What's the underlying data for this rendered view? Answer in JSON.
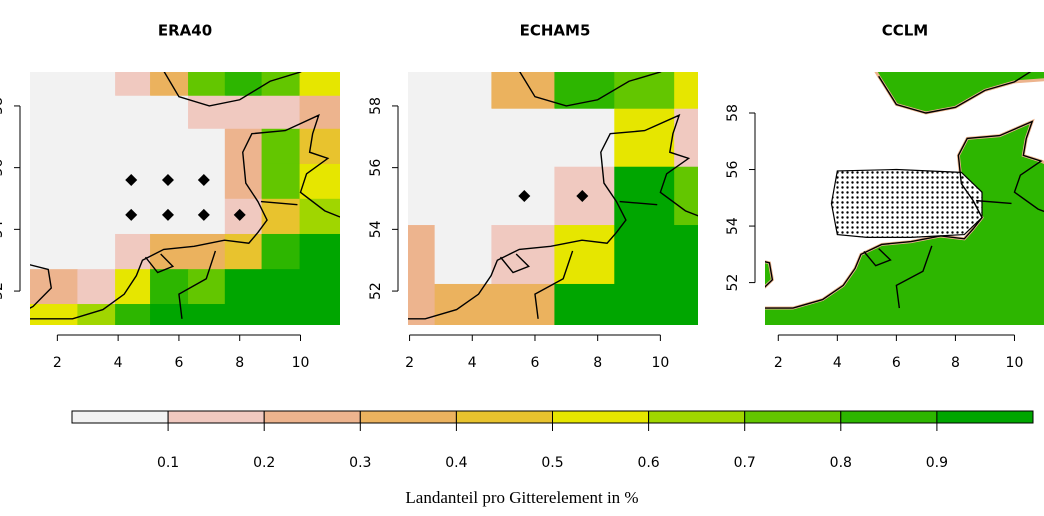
{
  "panels": [
    {
      "title": "ERA40",
      "xlim": [
        1.1,
        11.3
      ],
      "ylim": [
        50.9,
        59.1
      ],
      "xticks": [
        2,
        4,
        6,
        8,
        10
      ],
      "yticks": [
        52,
        54,
        56,
        58
      ],
      "lon_edges": [
        1.1,
        2.66,
        3.9,
        5.05,
        6.3,
        7.51,
        8.72,
        9.97,
        11.3
      ],
      "lat_edges": [
        59.1,
        58.33,
        57.26,
        56.12,
        54.99,
        53.85,
        52.71,
        51.58,
        50.9
      ],
      "cells": [
        [
          0.05,
          0.05,
          0.15,
          0.35,
          0.75,
          0.85,
          0.75,
          0.55
        ],
        [
          0.05,
          0.05,
          0.05,
          0.05,
          0.15,
          0.15,
          0.15,
          0.25
        ],
        [
          0.05,
          0.05,
          0.05,
          0.05,
          0.05,
          0.25,
          0.75,
          0.45
        ],
        [
          0.05,
          0.05,
          0.05,
          0.05,
          0.05,
          0.25,
          0.75,
          0.55
        ],
        [
          0.05,
          0.05,
          0.05,
          0.05,
          0.05,
          0.15,
          0.45,
          0.65
        ],
        [
          0.05,
          0.05,
          0.15,
          0.35,
          0.35,
          0.45,
          0.85,
          0.95
        ],
        [
          0.25,
          0.15,
          0.55,
          0.85,
          0.75,
          0.95,
          0.95,
          0.95
        ],
        [
          0.55,
          0.65,
          0.85,
          0.95,
          0.95,
          0.95,
          0.95,
          0.95
        ]
      ],
      "points": {
        "lon": [
          4.43,
          5.64,
          6.82,
          4.43,
          5.64,
          6.82,
          8.0
        ],
        "lat": [
          55.6,
          55.6,
          55.6,
          54.47,
          54.47,
          54.47,
          54.47
        ]
      }
    },
    {
      "title": "ECHAM5",
      "xlim": [
        1.95,
        11.2
      ],
      "ylim": [
        50.9,
        59.1
      ],
      "xticks": [
        2,
        4,
        6,
        8,
        10
      ],
      "yticks": [
        52,
        54,
        56,
        58
      ],
      "lon_edges": [
        1.95,
        2.8,
        4.61,
        6.62,
        8.53,
        10.44,
        11.2
      ],
      "lat_edges": [
        59.1,
        57.91,
        56.03,
        54.14,
        52.23,
        50.9
      ],
      "cells": [
        [
          0.05,
          0.05,
          0.35,
          0.85,
          0.75,
          0.55
        ],
        [
          0.05,
          0.05,
          0.05,
          0.05,
          0.55,
          0.15
        ],
        [
          0.05,
          0.05,
          0.05,
          0.15,
          0.95,
          0.75
        ],
        [
          0.25,
          0.05,
          0.15,
          0.55,
          0.95,
          0.95
        ],
        [
          0.25,
          0.35,
          0.35,
          0.95,
          0.95,
          0.95
        ]
      ],
      "points": {
        "lon": [
          5.66,
          7.51
        ],
        "lat": [
          55.08,
          55.08
        ]
      }
    },
    {
      "title": "CCLM",
      "xlim": [
        1.55,
        11.0
      ],
      "ylim": [
        50.5,
        59.45
      ],
      "xticks": [
        2,
        4,
        6,
        8,
        10
      ],
      "yticks": [
        52,
        54,
        56,
        58
      ]
    }
  ],
  "colorbar": {
    "breaks": [
      0,
      0.1,
      0.2,
      0.3,
      0.4,
      0.5,
      0.6,
      0.7,
      0.8,
      0.9,
      1
    ],
    "colors": [
      "#F2F2F2",
      "#F0C9C0",
      "#EDB48E",
      "#EBB25E",
      "#E8C32E",
      "#E6E600",
      "#A0D600",
      "#63C600",
      "#2DB600",
      "#00A600"
    ],
    "ticks": [
      0.1,
      0.2,
      0.3,
      0.4,
      0.5,
      0.6,
      0.7,
      0.8,
      0.9
    ],
    "label": "Landanteil pro Gitterelement in %"
  }
}
